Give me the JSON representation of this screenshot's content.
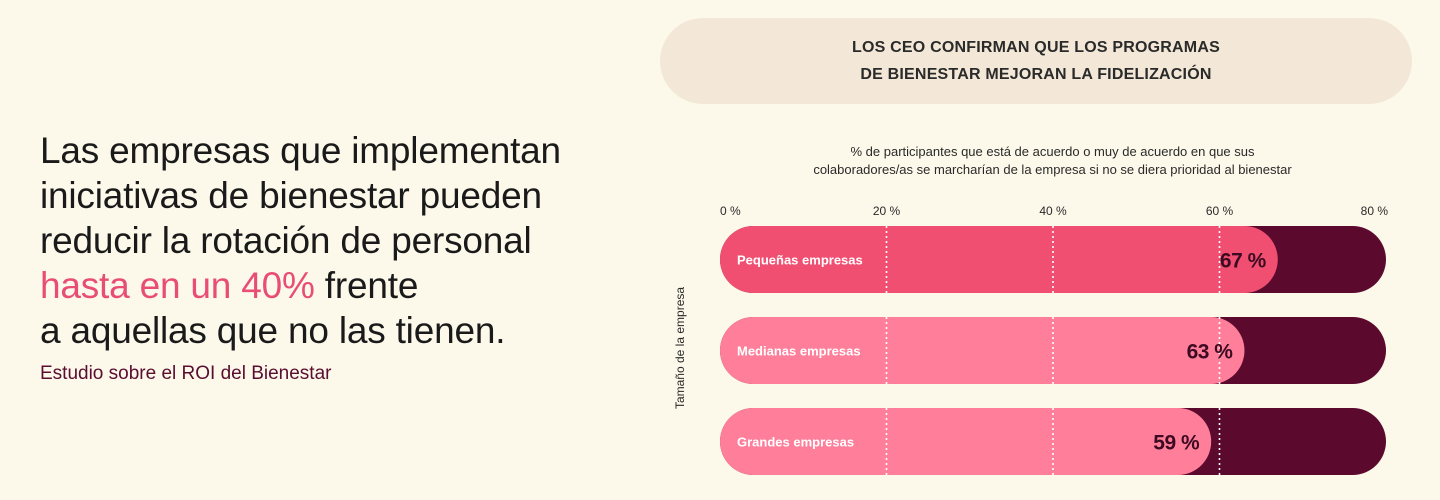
{
  "headline": {
    "line1": "Las empresas que implementan",
    "line2": "iniciativas de bienestar pueden",
    "line3": "reducir la rotación de personal",
    "highlight": "hasta en un 40%",
    "line4_rest": " frente",
    "line5": "a aquellas que no las tienen."
  },
  "source": "Estudio sobre el ROI del Bienestar",
  "chart_title": {
    "line1": "LOS CEO CONFIRMAN QUE LOS PROGRAMAS",
    "line2": "DE BIENESTAR MEJORAN LA FIDELIZACIÓN"
  },
  "chart_subtitle": {
    "line1": "% de participantes que está de acuerdo o muy de acuerdo en que sus",
    "line2": "colaboradores/as se marcharían de la empresa si no se diera prioridad al bienestar"
  },
  "chart_data": {
    "type": "bar",
    "orientation": "horizontal",
    "ylabel": "Tamaño de la empresa",
    "xlim": [
      0,
      80
    ],
    "ticks": [
      0,
      20,
      40,
      60,
      80
    ],
    "tick_labels": [
      "0 %",
      "20 %",
      "40 %",
      "60 %",
      "80 %"
    ],
    "categories": [
      "Pequeñas empresas",
      "Medianas empresas",
      "Grandes empresas"
    ],
    "values": [
      67,
      63,
      59
    ],
    "value_labels": [
      "67 %",
      "63 %",
      "59 %"
    ],
    "grid": "dotted vertical",
    "colors": {
      "bars": [
        "#f04f72",
        "#ff7f9b",
        "#ff7f9b"
      ],
      "track": "#5b0a2e",
      "value_text": "#3d0a22",
      "grid": "#ffffff"
    }
  }
}
